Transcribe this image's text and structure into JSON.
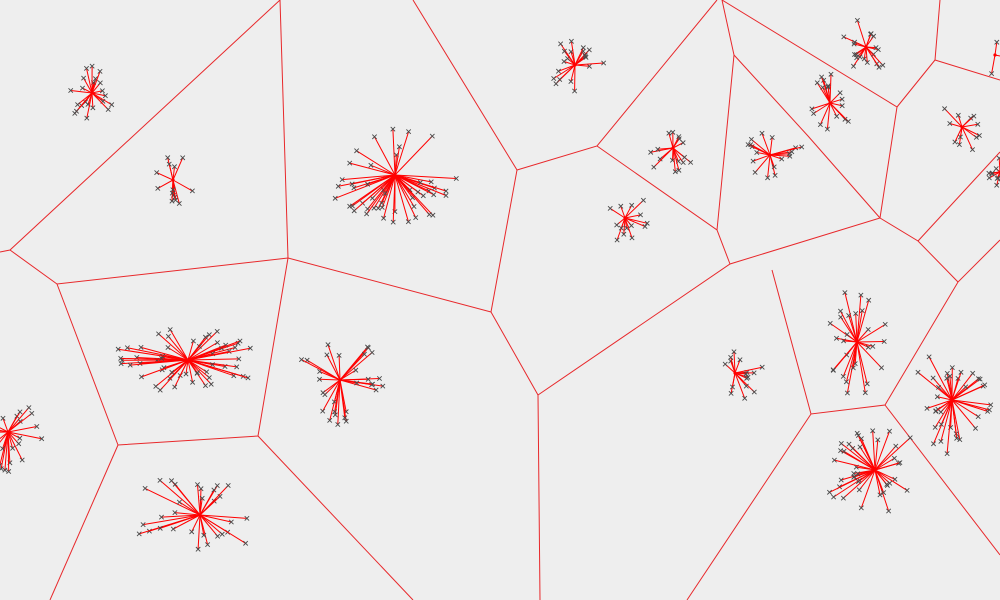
{
  "diagram": {
    "type": "voronoi-cluster-plot",
    "background_color": "#eeeeee",
    "edge_color": "#e8282b",
    "spoke_color": "#ff0000",
    "point_color": "#4a4a4a",
    "point_marker": "cross-x",
    "clusters": [
      {
        "id": "c1",
        "points": 22
      },
      {
        "id": "c2",
        "points": 14
      },
      {
        "id": "c3",
        "points": 48
      },
      {
        "id": "c4",
        "points": 20
      },
      {
        "id": "c5",
        "points": 16
      },
      {
        "id": "c6",
        "points": 14
      },
      {
        "id": "c7",
        "points": 18
      },
      {
        "id": "c8",
        "points": 17
      },
      {
        "id": "c9",
        "points": 20
      },
      {
        "id": "c10",
        "points": 12
      },
      {
        "id": "c11",
        "points": 16
      },
      {
        "id": "c12",
        "points": 3
      },
      {
        "id": "c13",
        "points": 55
      },
      {
        "id": "c14",
        "points": 30
      },
      {
        "id": "c15",
        "points": 24
      },
      {
        "id": "c16",
        "points": 14
      },
      {
        "id": "c17",
        "points": 30
      },
      {
        "id": "c18",
        "points": 28
      },
      {
        "id": "c19",
        "points": 36
      },
      {
        "id": "c20",
        "points": 40
      }
    ]
  }
}
